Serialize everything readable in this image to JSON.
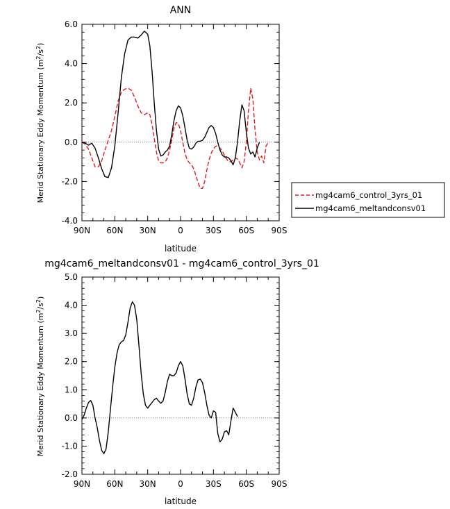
{
  "chart_data": [
    {
      "type": "line",
      "title": "ANN",
      "xlabel": "latitude",
      "ylabel": "Merid Stationary Eddy Momentum (m²/s²)",
      "ylabel_main": "Merid Stationary Eddy Momentum (m",
      "ylabel_sup": "2",
      "ylabel_mid": "/s",
      "ylabel_sup2": "2",
      "ylabel_end": ")",
      "xlim": [
        90,
        -90
      ],
      "ylim": [
        -4,
        6
      ],
      "x_ticks": [
        90,
        60,
        30,
        0,
        -30,
        -60,
        -90
      ],
      "x_tick_labels": [
        "90N",
        "60N",
        "30N",
        "0",
        "30S",
        "60S",
        "90S"
      ],
      "y_ticks": [
        -4,
        -2,
        0,
        2,
        4,
        6
      ],
      "y_tick_labels": [
        "-4.0",
        "-2.0",
        "0.0",
        "2.0",
        "4.0",
        "6.0"
      ],
      "legend_position": "right",
      "series": [
        {
          "name": "mg4cam6_control_3yrs_01",
          "color": "#e8161d",
          "dash": "dashed",
          "points": [
            [
              90,
              0
            ],
            [
              87,
              -0.1
            ],
            [
              84,
              -0.35
            ],
            [
              81,
              -0.8
            ],
            [
              78,
              -1.25
            ],
            [
              75,
              -1.25
            ],
            [
              72,
              -0.95
            ],
            [
              69,
              -0.4
            ],
            [
              66,
              0.1
            ],
            [
              63,
              0.6
            ],
            [
              60,
              1.3
            ],
            [
              57,
              2.1
            ],
            [
              54,
              2.55
            ],
            [
              51,
              2.7
            ],
            [
              48,
              2.75
            ],
            [
              45,
              2.65
            ],
            [
              42,
              2.3
            ],
            [
              39,
              1.85
            ],
            [
              36,
              1.5
            ],
            [
              33,
              1.4
            ],
            [
              30,
              1.5
            ],
            [
              28,
              1.4
            ],
            [
              26,
              0.9
            ],
            [
              24,
              0.2
            ],
            [
              22,
              -0.5
            ],
            [
              20,
              -0.95
            ],
            [
              18,
              -1.05
            ],
            [
              16,
              -1.05
            ],
            [
              14,
              -1.0
            ],
            [
              12,
              -0.8
            ],
            [
              10,
              -0.4
            ],
            [
              8,
              0.15
            ],
            [
              6,
              0.7
            ],
            [
              4,
              1.0
            ],
            [
              2,
              0.95
            ],
            [
              0,
              0.6
            ],
            [
              -2,
              0.0
            ],
            [
              -4,
              -0.55
            ],
            [
              -6,
              -0.9
            ],
            [
              -8,
              -1.05
            ],
            [
              -10,
              -1.15
            ],
            [
              -12,
              -1.35
            ],
            [
              -14,
              -1.7
            ],
            [
              -16,
              -2.05
            ],
            [
              -18,
              -2.35
            ],
            [
              -20,
              -2.35
            ],
            [
              -22,
              -2.0
            ],
            [
              -24,
              -1.4
            ],
            [
              -26,
              -0.9
            ],
            [
              -28,
              -0.55
            ],
            [
              -30,
              -0.35
            ],
            [
              -32,
              -0.2
            ],
            [
              -34,
              -0.2
            ],
            [
              -36,
              -0.3
            ],
            [
              -38,
              -0.45
            ],
            [
              -40,
              -0.65
            ],
            [
              -42,
              -0.85
            ],
            [
              -44,
              -1.0
            ],
            [
              -46,
              -1.0
            ],
            [
              -48,
              -0.9
            ],
            [
              -50,
              -0.8
            ],
            [
              -52,
              -0.85
            ],
            [
              -54,
              -1.05
            ],
            [
              -56,
              -1.3
            ],
            [
              -58,
              -1.0
            ],
            [
              -60,
              0.0
            ],
            [
              -62,
              1.6
            ],
            [
              -64,
              2.75
            ],
            [
              -66,
              2.2
            ],
            [
              -68,
              0.6
            ],
            [
              -70,
              -0.5
            ],
            [
              -72,
              -0.9
            ],
            [
              -74,
              -0.7
            ],
            [
              -76,
              -1.05
            ],
            [
              -78,
              -0.2
            ],
            [
              -80,
              0.0
            ]
          ],
          "x_scale_note": "x in degrees latitude mapped with 90N at left"
        },
        {
          "name": "mg4cam6_meltandconsv01",
          "color": "#000000",
          "dash": "solid",
          "points": [
            [
              90,
              0
            ],
            [
              87,
              -0.05
            ],
            [
              84,
              -0.15
            ],
            [
              81,
              -0.05
            ],
            [
              78,
              -0.3
            ],
            [
              75,
              -0.8
            ],
            [
              72,
              -1.35
            ],
            [
              69,
              -1.75
            ],
            [
              66,
              -1.8
            ],
            [
              63,
              -1.3
            ],
            [
              60,
              -0.2
            ],
            [
              57,
              1.5
            ],
            [
              54,
              3.3
            ],
            [
              51,
              4.5
            ],
            [
              48,
              5.2
            ],
            [
              45,
              5.35
            ],
            [
              42,
              5.35
            ],
            [
              39,
              5.3
            ],
            [
              36,
              5.45
            ],
            [
              33,
              5.65
            ],
            [
              30,
              5.5
            ],
            [
              28,
              4.9
            ],
            [
              26,
              3.6
            ],
            [
              24,
              2.0
            ],
            [
              22,
              0.6
            ],
            [
              20,
              -0.35
            ],
            [
              18,
              -0.7
            ],
            [
              16,
              -0.65
            ],
            [
              14,
              -0.5
            ],
            [
              12,
              -0.4
            ],
            [
              10,
              -0.2
            ],
            [
              8,
              0.4
            ],
            [
              6,
              1.1
            ],
            [
              4,
              1.6
            ],
            [
              2,
              1.85
            ],
            [
              0,
              1.75
            ],
            [
              -2,
              1.35
            ],
            [
              -4,
              0.75
            ],
            [
              -6,
              0.1
            ],
            [
              -8,
              -0.3
            ],
            [
              -10,
              -0.35
            ],
            [
              -12,
              -0.25
            ],
            [
              -14,
              -0.05
            ],
            [
              -16,
              0.05
            ],
            [
              -18,
              0.05
            ],
            [
              -20,
              0.1
            ],
            [
              -22,
              0.25
            ],
            [
              -24,
              0.5
            ],
            [
              -26,
              0.75
            ],
            [
              -28,
              0.85
            ],
            [
              -30,
              0.75
            ],
            [
              -32,
              0.45
            ],
            [
              -34,
              0.0
            ],
            [
              -36,
              -0.4
            ],
            [
              -38,
              -0.65
            ],
            [
              -40,
              -0.75
            ],
            [
              -42,
              -0.75
            ],
            [
              -44,
              -0.8
            ],
            [
              -46,
              -0.95
            ],
            [
              -48,
              -1.15
            ],
            [
              -50,
              -0.8
            ],
            [
              -52,
              0.0
            ],
            [
              -54,
              1.1
            ],
            [
              -56,
              1.9
            ],
            [
              -58,
              1.6
            ],
            [
              -60,
              0.5
            ],
            [
              -62,
              -0.3
            ],
            [
              -64,
              -0.6
            ],
            [
              -66,
              -0.5
            ],
            [
              -68,
              -0.75
            ],
            [
              -70,
              -0.3
            ],
            [
              -72,
              0.0
            ]
          ]
        }
      ]
    },
    {
      "type": "line",
      "title": "mg4cam6_meltandconsv01 - mg4cam6_control_3yrs_01",
      "xlabel": "latitude",
      "ylabel": "Merid Stationary Eddy Momentum (m²/s²)",
      "ylabel_main": "Merid Stationary Eddy Momentum (m",
      "ylabel_sup": "2",
      "ylabel_mid": "/s",
      "ylabel_sup2": "2",
      "ylabel_end": ")",
      "xlim": [
        90,
        -90
      ],
      "ylim": [
        -2,
        5
      ],
      "x_ticks": [
        90,
        60,
        30,
        0,
        -30,
        -60,
        -90
      ],
      "x_tick_labels": [
        "90N",
        "60N",
        "30N",
        "0",
        "30S",
        "60S",
        "90S"
      ],
      "y_ticks": [
        -2,
        -1,
        0,
        1,
        2,
        3,
        4,
        5
      ],
      "y_tick_labels": [
        "-2.0",
        "-1.0",
        "0.0",
        "1.0",
        "2.0",
        "3.0",
        "4.0",
        "5.0"
      ],
      "series": [
        {
          "color": "#000000",
          "dash": "solid",
          "points": [
            [
              90,
              -0.05
            ],
            [
              88,
              0.1
            ],
            [
              86,
              0.35
            ],
            [
              84,
              0.55
            ],
            [
              82,
              0.62
            ],
            [
              80,
              0.45
            ],
            [
              78,
              0.0
            ],
            [
              76,
              -0.35
            ],
            [
              74,
              -0.8
            ],
            [
              72,
              -1.15
            ],
            [
              70,
              -1.27
            ],
            [
              68,
              -1.1
            ],
            [
              66,
              -0.5
            ],
            [
              64,
              0.3
            ],
            [
              62,
              1.1
            ],
            [
              60,
              1.8
            ],
            [
              58,
              2.3
            ],
            [
              56,
              2.6
            ],
            [
              54,
              2.7
            ],
            [
              52,
              2.75
            ],
            [
              50,
              2.95
            ],
            [
              48,
              3.4
            ],
            [
              46,
              3.9
            ],
            [
              44,
              4.12
            ],
            [
              42,
              4.0
            ],
            [
              40,
              3.5
            ],
            [
              38,
              2.6
            ],
            [
              36,
              1.6
            ],
            [
              34,
              0.85
            ],
            [
              32,
              0.45
            ],
            [
              30,
              0.35
            ],
            [
              28,
              0.45
            ],
            [
              26,
              0.55
            ],
            [
              24,
              0.65
            ],
            [
              22,
              0.7
            ],
            [
              20,
              0.6
            ],
            [
              18,
              0.52
            ],
            [
              16,
              0.6
            ],
            [
              14,
              0.9
            ],
            [
              12,
              1.3
            ],
            [
              10,
              1.55
            ],
            [
              8,
              1.5
            ],
            [
              6,
              1.5
            ],
            [
              4,
              1.6
            ],
            [
              2,
              1.85
            ],
            [
              0,
              2.0
            ],
            [
              -2,
              1.85
            ],
            [
              -4,
              1.4
            ],
            [
              -6,
              0.85
            ],
            [
              -8,
              0.5
            ],
            [
              -10,
              0.45
            ],
            [
              -12,
              0.7
            ],
            [
              -14,
              1.1
            ],
            [
              -16,
              1.35
            ],
            [
              -18,
              1.38
            ],
            [
              -20,
              1.25
            ],
            [
              -22,
              0.9
            ],
            [
              -24,
              0.45
            ],
            [
              -26,
              0.1
            ],
            [
              -28,
              0.0
            ],
            [
              -30,
              0.25
            ],
            [
              -32,
              0.2
            ],
            [
              -34,
              -0.55
            ],
            [
              -36,
              -0.85
            ],
            [
              -38,
              -0.75
            ],
            [
              -40,
              -0.5
            ],
            [
              -42,
              -0.45
            ],
            [
              -44,
              -0.6
            ],
            [
              -46,
              -0.1
            ],
            [
              -48,
              0.35
            ],
            [
              -50,
              0.2
            ],
            [
              -52,
              0.05
            ]
          ]
        }
      ]
    }
  ]
}
